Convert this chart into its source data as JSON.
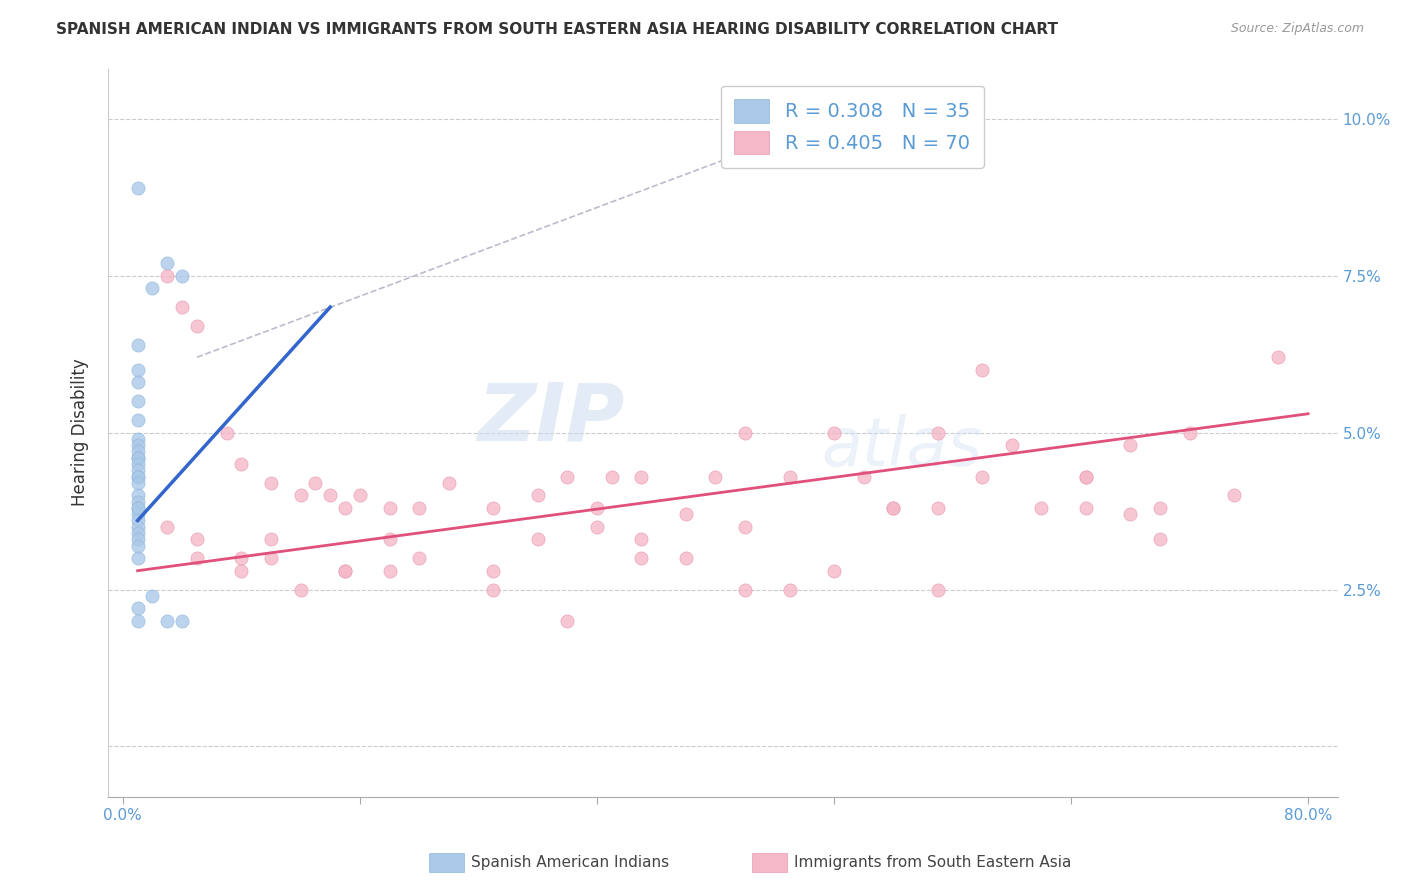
{
  "title": "SPANISH AMERICAN INDIAN VS IMMIGRANTS FROM SOUTH EASTERN ASIA HEARING DISABILITY CORRELATION CHART",
  "source": "Source: ZipAtlas.com",
  "ylabel": "Hearing Disability",
  "yticks": [
    0.0,
    0.025,
    0.05,
    0.075,
    0.1
  ],
  "ytick_labels": [
    "",
    "2.5%",
    "5.0%",
    "7.5%",
    "10.0%"
  ],
  "legend1_R": "0.308",
  "legend1_N": "35",
  "legend2_R": "0.405",
  "legend2_N": "70",
  "color_blue": "#aac8e8",
  "color_blue_edge": "#90b8dc",
  "color_pink": "#f4b8c8",
  "color_pink_edge": "#e898b0",
  "color_blue_line": "#3366cc",
  "color_pink_line": "#e0507a",
  "color_dashed": "#bbbbcc",
  "watermark_zip": "ZIP",
  "watermark_atlas": "atlas",
  "blue_scatter_x": [
    0.001,
    0.004,
    0.003,
    0.002,
    0.001,
    0.001,
    0.001,
    0.001,
    0.001,
    0.001,
    0.001,
    0.001,
    0.001,
    0.001,
    0.001,
    0.001,
    0.001,
    0.001,
    0.001,
    0.001,
    0.001,
    0.001,
    0.001,
    0.001,
    0.001,
    0.001,
    0.001,
    0.001,
    0.001,
    0.001,
    0.001,
    0.002,
    0.003,
    0.004,
    0.001
  ],
  "blue_scatter_y": [
    0.089,
    0.075,
    0.077,
    0.073,
    0.064,
    0.06,
    0.058,
    0.055,
    0.052,
    0.049,
    0.048,
    0.047,
    0.046,
    0.046,
    0.045,
    0.044,
    0.043,
    0.043,
    0.042,
    0.04,
    0.039,
    0.038,
    0.037,
    0.036,
    0.035,
    0.034,
    0.033,
    0.032,
    0.03,
    0.022,
    0.02,
    0.024,
    0.02,
    0.02,
    0.038
  ],
  "pink_scatter_x": [
    0.003,
    0.004,
    0.005,
    0.007,
    0.008,
    0.01,
    0.012,
    0.013,
    0.014,
    0.015,
    0.016,
    0.018,
    0.02,
    0.022,
    0.025,
    0.028,
    0.03,
    0.032,
    0.033,
    0.035,
    0.038,
    0.04,
    0.042,
    0.045,
    0.048,
    0.05,
    0.052,
    0.055,
    0.058,
    0.06,
    0.062,
    0.065,
    0.068,
    0.07,
    0.072,
    0.003,
    0.005,
    0.008,
    0.01,
    0.012,
    0.015,
    0.018,
    0.02,
    0.025,
    0.028,
    0.032,
    0.035,
    0.038,
    0.042,
    0.048,
    0.052,
    0.058,
    0.065,
    0.07,
    0.075,
    0.005,
    0.01,
    0.015,
    0.025,
    0.035,
    0.045,
    0.055,
    0.065,
    0.078,
    0.008,
    0.018,
    0.03,
    0.042,
    0.055,
    0.068
  ],
  "pink_scatter_y": [
    0.075,
    0.07,
    0.067,
    0.05,
    0.045,
    0.042,
    0.04,
    0.042,
    0.04,
    0.038,
    0.04,
    0.038,
    0.038,
    0.042,
    0.038,
    0.04,
    0.043,
    0.038,
    0.043,
    0.043,
    0.037,
    0.043,
    0.05,
    0.043,
    0.05,
    0.043,
    0.038,
    0.05,
    0.043,
    0.048,
    0.038,
    0.043,
    0.037,
    0.038,
    0.05,
    0.035,
    0.033,
    0.03,
    0.033,
    0.025,
    0.028,
    0.033,
    0.03,
    0.028,
    0.033,
    0.035,
    0.033,
    0.03,
    0.035,
    0.028,
    0.038,
    0.06,
    0.038,
    0.033,
    0.04,
    0.03,
    0.03,
    0.028,
    0.025,
    0.03,
    0.025,
    0.038,
    0.043,
    0.062,
    0.028,
    0.028,
    0.02,
    0.025,
    0.025,
    0.048
  ],
  "blue_line_x": [
    0.001,
    0.014
  ],
  "blue_line_y": [
    0.036,
    0.07
  ],
  "pink_line_x": [
    0.001,
    0.08
  ],
  "pink_line_y": [
    0.028,
    0.053
  ],
  "dashed_line_x": [
    0.005,
    0.048
  ],
  "dashed_line_y": [
    0.062,
    0.1
  ],
  "xlim": [
    -0.001,
    0.082
  ],
  "ylim": [
    -0.008,
    0.108
  ]
}
